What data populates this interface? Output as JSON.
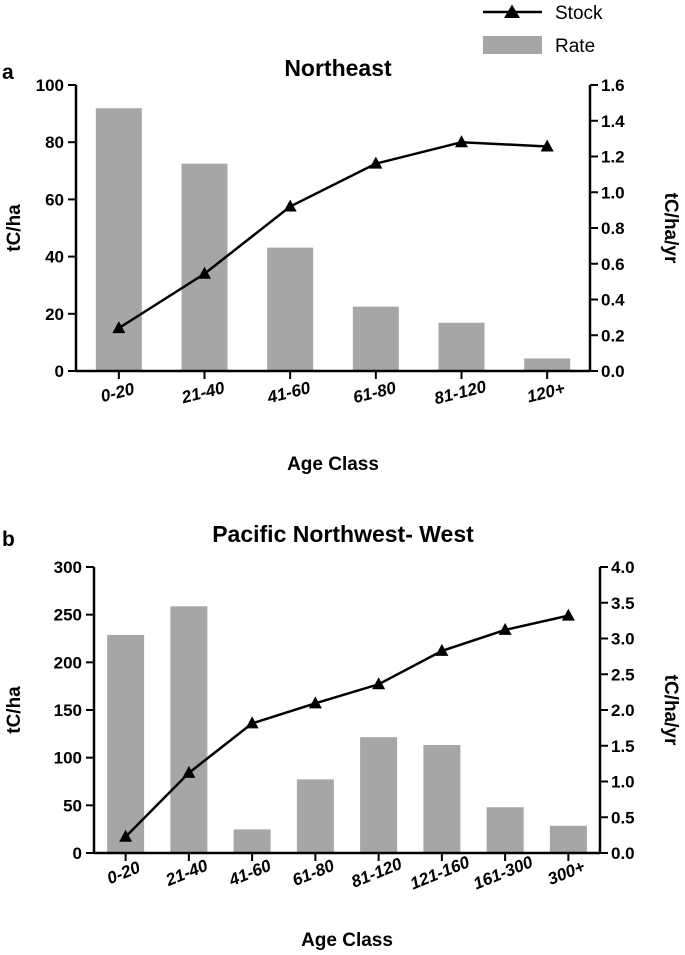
{
  "legend": {
    "stock_label": "Stock",
    "rate_label": "Rate"
  },
  "colors": {
    "bar": "#a6a6a6",
    "line": "#000000"
  },
  "chart_data": [
    {
      "type": "bar",
      "panel": "a",
      "title": "Northeast",
      "xlabel": "Age Class",
      "ylabel": "tC/ha",
      "y2label": "tC/ha/yr",
      "categories": [
        "0-20",
        "21-40",
        "41-60",
        "61-80",
        "81-120",
        "120+"
      ],
      "ylim": [
        0,
        100
      ],
      "yticks": [
        0,
        20,
        40,
        60,
        80,
        100
      ],
      "y2lim": [
        0,
        1.6
      ],
      "y2ticks": [
        "0.0",
        "0.2",
        "0.4",
        "0.6",
        "0.8",
        "1.0",
        "1.2",
        "1.4",
        "1.6"
      ],
      "series": [
        {
          "name": "Rate",
          "type": "bar",
          "axis": "right",
          "values": [
            1.47,
            1.16,
            0.69,
            0.36,
            0.27,
            0.07
          ]
        },
        {
          "name": "Stock",
          "type": "line",
          "axis": "left",
          "values": [
            15,
            34,
            57.5,
            72.5,
            80,
            78.5
          ]
        }
      ]
    },
    {
      "type": "bar",
      "panel": "b",
      "title": "Pacific Northwest- West",
      "xlabel": "Age Class",
      "ylabel": "tC/ha",
      "y2label": "tC/ha/yr",
      "categories": [
        "0-20",
        "21-40",
        "41-60",
        "61-80",
        "81-120",
        "121-160",
        "161-300",
        "300+"
      ],
      "ylim": [
        0,
        300
      ],
      "yticks": [
        0,
        50,
        100,
        150,
        200,
        250,
        300
      ],
      "y2lim": [
        0,
        4.0
      ],
      "y2ticks": [
        "0.0",
        "0.5",
        "1.0",
        "1.5",
        "2.0",
        "2.5",
        "3.0",
        "3.5",
        "4.0"
      ],
      "series": [
        {
          "name": "Rate",
          "type": "bar",
          "axis": "right",
          "values": [
            3.05,
            3.45,
            0.33,
            1.03,
            1.62,
            1.51,
            0.64,
            0.38
          ]
        },
        {
          "name": "Stock",
          "type": "line",
          "axis": "left",
          "values": [
            17,
            84,
            136,
            157,
            177,
            212,
            234,
            249
          ]
        }
      ]
    }
  ]
}
